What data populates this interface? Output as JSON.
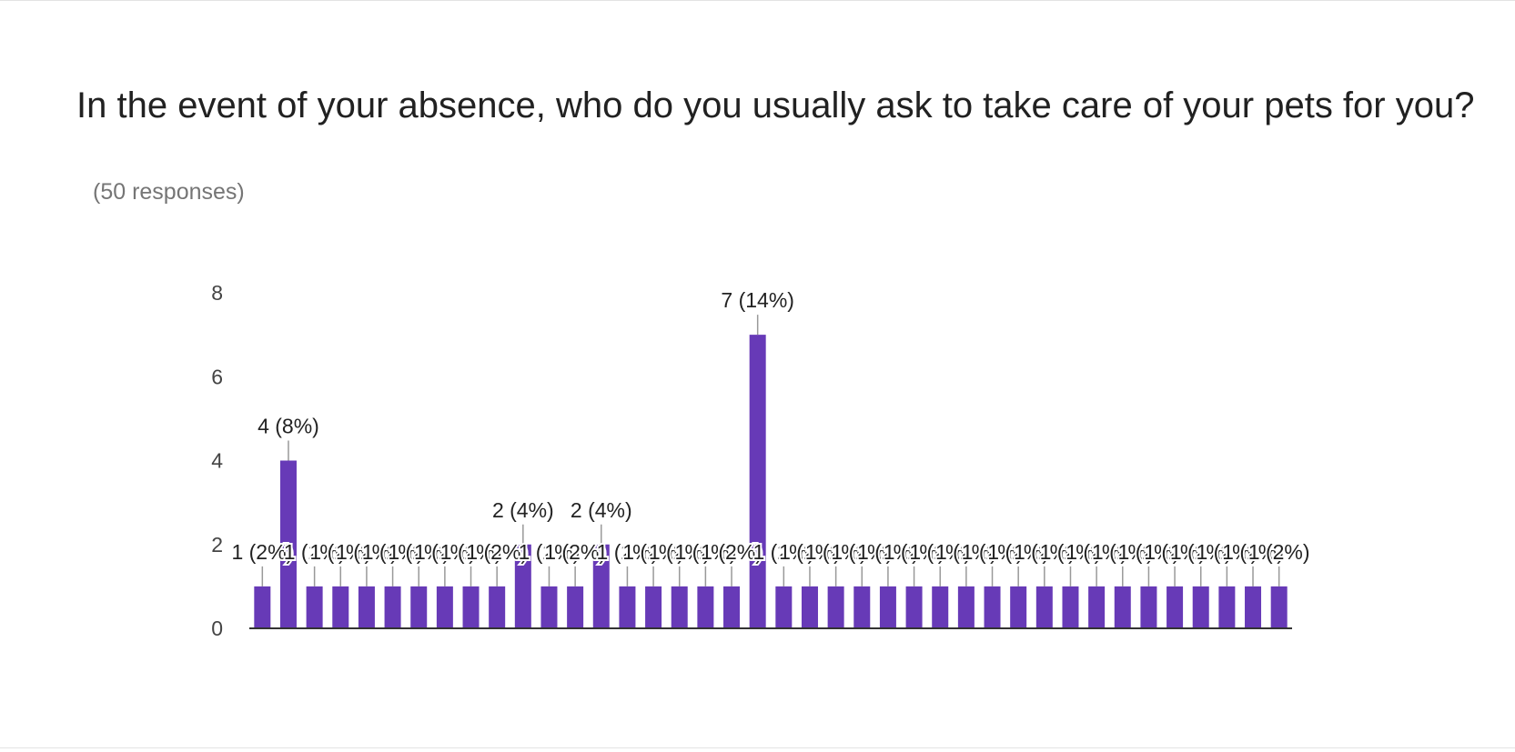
{
  "card": {
    "title": "In the event of your absence, who do you usually ask to take care of your pets for you?",
    "responses": "(50 responses)"
  },
  "colors": {
    "bar": "#673ab7",
    "axis": "#333333",
    "label": "#222222",
    "leader": "#999999",
    "tick": "#444444"
  },
  "chart_data": {
    "type": "bar",
    "title": "In the event of your absence, who do you usually ask to take care of your pets for you?",
    "subtitle": "(50 responses)",
    "xlabel": "",
    "ylabel": "",
    "ylim": [
      0,
      8
    ],
    "yticks": [
      0,
      2,
      4,
      6,
      8
    ],
    "grid": false,
    "legend": "none",
    "values": [
      1,
      4,
      1,
      1,
      1,
      1,
      1,
      1,
      1,
      1,
      2,
      1,
      1,
      2,
      1,
      1,
      1,
      1,
      1,
      7,
      1,
      1,
      1,
      1,
      1,
      1,
      1,
      1,
      1,
      1,
      1,
      1,
      1,
      1,
      1,
      1,
      1,
      1,
      1,
      1
    ],
    "data_labels": [
      "1 (2%)",
      "4 (8%)",
      "1 (2%)",
      "1 (2%)",
      "1 (2%)",
      "1 (2%)",
      "1 (2%)",
      "1 (2%)",
      "1 (2%)",
      "1 (2%)",
      "2 (4%)",
      "1 (2%)",
      "1 (2%)",
      "2 (4%)",
      "1 (2%)",
      "1 (2%)",
      "1 (2%)",
      "1 (2%)",
      "1 (2%)",
      "7 (14%)",
      "1 (2%)",
      "1 (2%)",
      "1 (2%)",
      "1 (2%)",
      "1 (2%)",
      "1 (2%)",
      "1 (2%)",
      "1 (2%)",
      "1 (2%)",
      "1 (2%)",
      "1 (2%)",
      "1 (2%)",
      "1 (2%)",
      "1 (2%)",
      "1 (2%)",
      "1 (2%)",
      "1 (2%)",
      "1 (2%)",
      "1 (2%)",
      "1 (2%)"
    ]
  }
}
